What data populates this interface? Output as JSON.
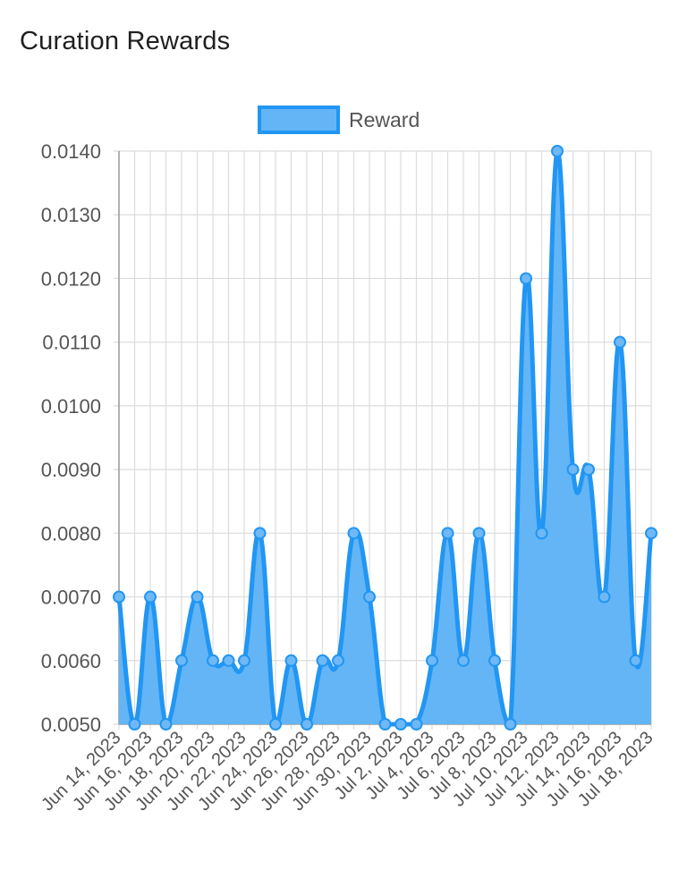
{
  "page": {
    "title": "Curation Rewards"
  },
  "chart_data": {
    "type": "area",
    "title": "Curation Rewards",
    "legend": {
      "position": "top",
      "entries": [
        "Reward"
      ]
    },
    "grid": true,
    "ylim": [
      0.005,
      0.014
    ],
    "y_ticks": [
      "0.0050",
      "0.0060",
      "0.0070",
      "0.0080",
      "0.0090",
      "0.0100",
      "0.0110",
      "0.0120",
      "0.0130",
      "0.0140"
    ],
    "colors": {
      "line": "#2196f3",
      "fill": "#64b5f6",
      "point_fill": "#6fb8f6",
      "grid": "#dcdcdc"
    },
    "x": [
      "Jun 14, 2023",
      "Jun 15, 2023",
      "Jun 16, 2023",
      "Jun 17, 2023",
      "Jun 18, 2023",
      "Jun 19, 2023",
      "Jun 20, 2023",
      "Jun 21, 2023",
      "Jun 22, 2023",
      "Jun 23, 2023",
      "Jun 24, 2023",
      "Jun 25, 2023",
      "Jun 26, 2023",
      "Jun 27, 2023",
      "Jun 28, 2023",
      "Jun 29, 2023",
      "Jun 30, 2023",
      "Jul 1, 2023",
      "Jul 2, 2023",
      "Jul 3, 2023",
      "Jul 4, 2023",
      "Jul 5, 2023",
      "Jul 6, 2023",
      "Jul 7, 2023",
      "Jul 8, 2023",
      "Jul 9, 2023",
      "Jul 10, 2023",
      "Jul 11, 2023",
      "Jul 12, 2023",
      "Jul 13, 2023",
      "Jul 14, 2023",
      "Jul 15, 2023",
      "Jul 16, 2023",
      "Jul 17, 2023",
      "Jul 18, 2023"
    ],
    "x_tick_labels": [
      "Jun 14, 2023",
      "Jun 16, 2023",
      "Jun 18, 2023",
      "Jun 20, 2023",
      "Jun 22, 2023",
      "Jun 24, 2023",
      "Jun 26, 2023",
      "Jun 28, 2023",
      "Jun 30, 2023",
      "Jul 2, 2023",
      "Jul 4, 2023",
      "Jul 6, 2023",
      "Jul 8, 2023",
      "Jul 10, 2023",
      "Jul 12, 2023",
      "Jul 14, 2023",
      "Jul 16, 2023",
      "Jul 18, 2023"
    ],
    "series": [
      {
        "name": "Reward",
        "values": [
          0.007,
          0.005,
          0.007,
          0.005,
          0.006,
          0.007,
          0.006,
          0.006,
          0.006,
          0.008,
          0.005,
          0.006,
          0.005,
          0.006,
          0.006,
          0.008,
          0.007,
          0.005,
          0.005,
          0.005,
          0.006,
          0.008,
          0.006,
          0.008,
          0.006,
          0.005,
          0.012,
          0.008,
          0.014,
          0.009,
          0.009,
          0.007,
          0.011,
          0.006,
          0.008
        ]
      }
    ]
  }
}
